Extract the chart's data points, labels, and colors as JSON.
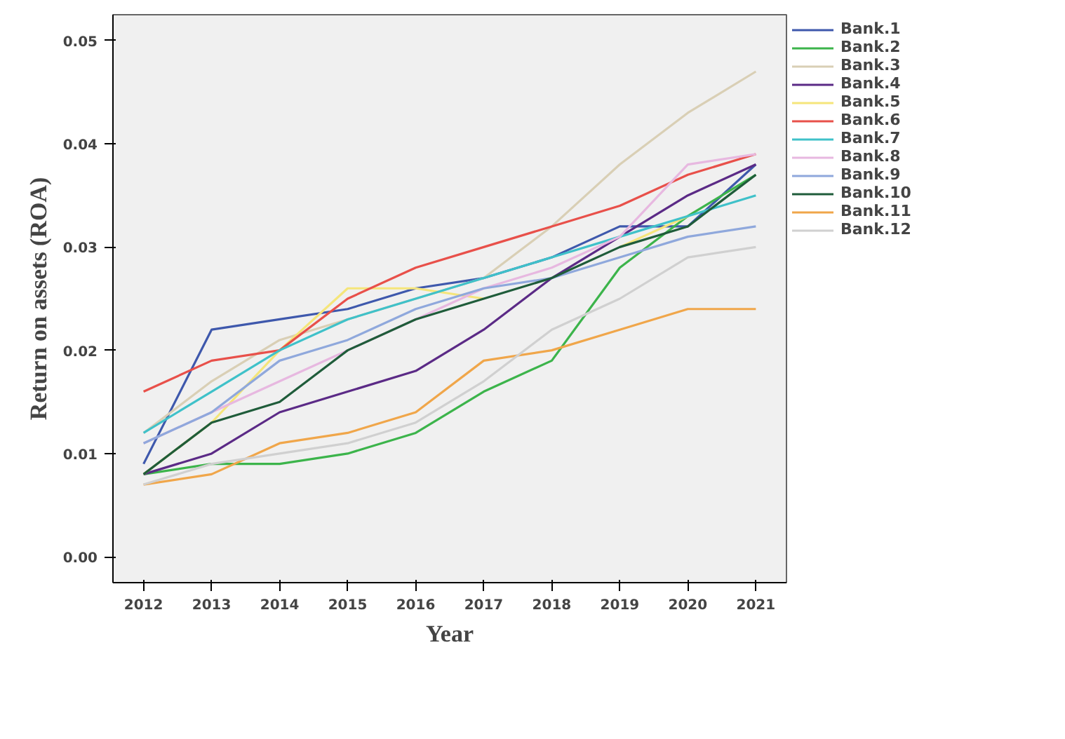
{
  "chart_data": {
    "type": "line",
    "xlabel": "Year",
    "ylabel": "Return on assets (ROA)",
    "x": [
      2012,
      2013,
      2014,
      2015,
      2016,
      2017,
      2018,
      2019,
      2020,
      2021
    ],
    "xlim": [
      2011.55,
      2021.45
    ],
    "xticks": [
      2012,
      2013,
      2014,
      2015,
      2016,
      2017,
      2018,
      2019,
      2020,
      2021
    ],
    "ylim": [
      -0.0025,
      0.0525
    ],
    "yticks": [
      {
        "value": 0,
        "label": "0.00"
      },
      {
        "value": 0.01,
        "label": "0.01"
      },
      {
        "value": 0.02,
        "label": "0.02"
      },
      {
        "value": 0.03,
        "label": "0.03"
      },
      {
        "value": 0.04,
        "label": "0.04"
      },
      {
        "value": 0.05,
        "label": "0.05"
      }
    ],
    "grid": false,
    "legend": "right",
    "line_style": "solid",
    "marker": "none",
    "series": [
      {
        "name": "Bank.1",
        "color": "#3e58ac",
        "values": [
          0.009,
          0.022,
          0.023,
          0.024,
          0.026,
          0.027,
          0.029,
          0.032,
          0.032,
          0.038
        ]
      },
      {
        "name": "Bank.2",
        "color": "#3cb44b",
        "values": [
          0.008,
          0.009,
          0.009,
          0.01,
          0.012,
          0.016,
          0.019,
          0.028,
          0.033,
          0.037
        ]
      },
      {
        "name": "Bank.3",
        "color": "#d9cfb5",
        "values": [
          0.012,
          0.017,
          0.021,
          0.023,
          0.025,
          0.027,
          0.032,
          0.038,
          0.043,
          0.047
        ]
      },
      {
        "name": "Bank.4",
        "color": "#5b2a86",
        "values": [
          0.008,
          0.01,
          0.014,
          0.016,
          0.018,
          0.022,
          0.027,
          0.031,
          0.035,
          0.038
        ]
      },
      {
        "name": "Bank.5",
        "color": "#f5e57a",
        "values": [
          0.008,
          0.013,
          0.02,
          0.026,
          0.026,
          0.025,
          null,
          0.03,
          0.033,
          null
        ]
      },
      {
        "name": "Bank.6",
        "color": "#e8504a",
        "values": [
          0.016,
          0.019,
          0.02,
          0.025,
          0.028,
          0.03,
          0.032,
          0.034,
          0.037,
          0.039
        ]
      },
      {
        "name": "Bank.7",
        "color": "#3fc1c9",
        "values": [
          0.012,
          0.016,
          0.02,
          0.023,
          0.025,
          0.027,
          0.029,
          0.031,
          0.033,
          0.035
        ]
      },
      {
        "name": "Bank.8",
        "color": "#e7b8e0",
        "values": [
          0.011,
          0.014,
          0.017,
          0.02,
          0.023,
          0.026,
          0.028,
          0.031,
          0.038,
          0.039
        ]
      },
      {
        "name": "Bank.9",
        "color": "#8fa8dc",
        "values": [
          0.011,
          0.014,
          0.019,
          0.021,
          0.024,
          0.026,
          0.027,
          0.029,
          0.031,
          0.032
        ]
      },
      {
        "name": "Bank.10",
        "color": "#1f5c3a",
        "values": [
          0.008,
          0.013,
          0.015,
          0.02,
          0.023,
          0.025,
          0.027,
          0.03,
          0.032,
          0.037
        ]
      },
      {
        "name": "Bank.11",
        "color": "#f0a64a",
        "values": [
          0.007,
          0.008,
          0.011,
          0.012,
          0.014,
          0.019,
          0.02,
          0.022,
          0.024,
          0.024
        ]
      },
      {
        "name": "Bank.12",
        "color": "#d0d0d0",
        "values": [
          0.007,
          0.009,
          0.01,
          0.011,
          0.013,
          0.017,
          0.022,
          0.025,
          0.029,
          0.03
        ]
      }
    ]
  }
}
